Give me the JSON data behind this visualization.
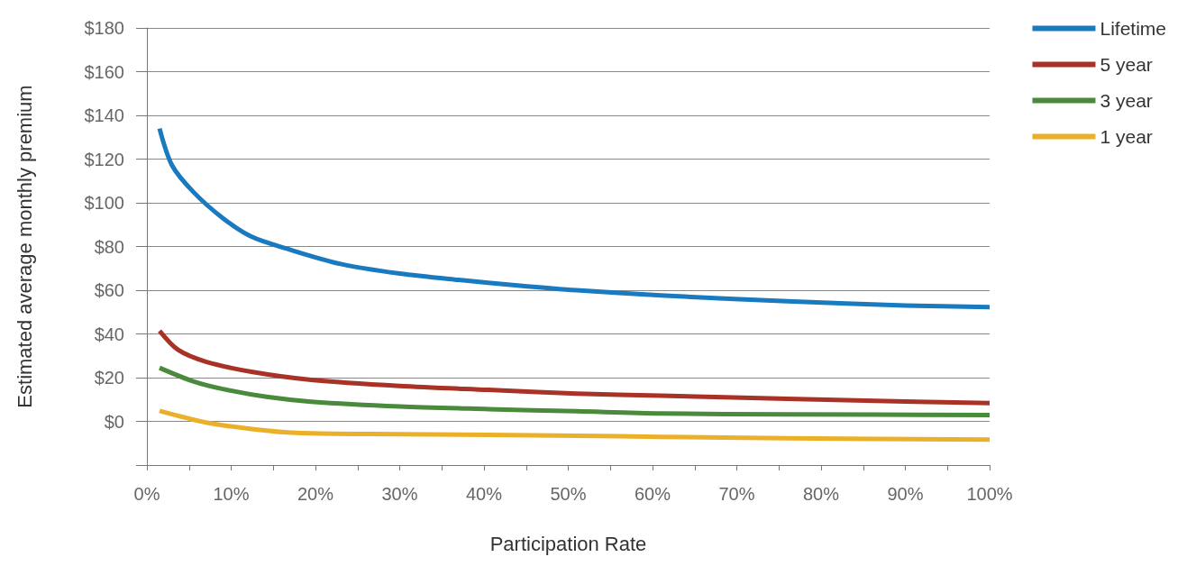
{
  "chart_data": {
    "type": "line",
    "xlabel": "Participation Rate",
    "ylabel": "Estimated average monthly premium",
    "xlim": [
      0,
      100
    ],
    "ylim": [
      -20,
      180
    ],
    "xticks": [
      {
        "value": 0,
        "label": "0%"
      },
      {
        "value": 5,
        "label": null
      },
      {
        "value": 10,
        "label": "10%"
      },
      {
        "value": 15,
        "label": null
      },
      {
        "value": 20,
        "label": "20%"
      },
      {
        "value": 25,
        "label": null
      },
      {
        "value": 30,
        "label": "30%"
      },
      {
        "value": 35,
        "label": null
      },
      {
        "value": 40,
        "label": "40%"
      },
      {
        "value": 45,
        "label": null
      },
      {
        "value": 50,
        "label": "50%"
      },
      {
        "value": 55,
        "label": null
      },
      {
        "value": 60,
        "label": "60%"
      },
      {
        "value": 65,
        "label": null
      },
      {
        "value": 70,
        "label": "70%"
      },
      {
        "value": 75,
        "label": null
      },
      {
        "value": 80,
        "label": "80%"
      },
      {
        "value": 85,
        "label": null
      },
      {
        "value": 90,
        "label": "90%"
      },
      {
        "value": 95,
        "label": null
      },
      {
        "value": 100,
        "label": "100%"
      }
    ],
    "yticks": [
      {
        "value": -20,
        "label": null
      },
      {
        "value": 0,
        "label": "$0"
      },
      {
        "value": 20,
        "label": "$20"
      },
      {
        "value": 40,
        "label": "$40"
      },
      {
        "value": 60,
        "label": "$60"
      },
      {
        "value": 80,
        "label": "$80"
      },
      {
        "value": 100,
        "label": "$100"
      },
      {
        "value": 120,
        "label": "$120"
      },
      {
        "value": 140,
        "label": "$140"
      },
      {
        "value": 160,
        "label": "$160"
      },
      {
        "value": 180,
        "label": "$180"
      }
    ],
    "grid": "y",
    "legend": "top right",
    "marker": "none",
    "line_style": "solid",
    "series": [
      {
        "name": "Lifetime",
        "color": "#1a7abf",
        "x": [
          1.5,
          3,
          5.5,
          9,
          12.4,
          16.6,
          23,
          30,
          37,
          44,
          51,
          61,
          76,
          90,
          100
        ],
        "values": [
          134,
          117,
          105,
          93,
          84.5,
          79,
          72,
          67.6,
          64.7,
          62.2,
          60,
          57.6,
          54.9,
          53,
          52.3
        ]
      },
      {
        "name": "5 year",
        "color": "#a93226",
        "x": [
          1.5,
          3.7,
          7,
          12.4,
          19.5,
          30,
          40.5,
          51,
          61,
          76,
          90,
          100
        ],
        "values": [
          41.4,
          32.7,
          27.3,
          22.7,
          19,
          16.2,
          14.4,
          12.7,
          11.8,
          10.3,
          9.1,
          8.3
        ]
      },
      {
        "name": "3 year",
        "color": "#4a8a3c",
        "x": [
          1.5,
          5.5,
          9,
          14.2,
          19.5,
          30,
          40.5,
          51,
          61,
          76,
          100
        ],
        "values": [
          24.5,
          18.3,
          14.8,
          11.2,
          9,
          6.8,
          5.6,
          4.6,
          3.6,
          3.2,
          2.9
        ]
      },
      {
        "name": "1 year",
        "color": "#ebb02a",
        "x": [
          1.5,
          7,
          12.4,
          17.7,
          26.5,
          40.5,
          51,
          61,
          76,
          100
        ],
        "values": [
          4.8,
          -0.5,
          -3.5,
          -5.3,
          -5.8,
          -6.2,
          -6.6,
          -7.1,
          -7.7,
          -8.4
        ]
      }
    ]
  }
}
